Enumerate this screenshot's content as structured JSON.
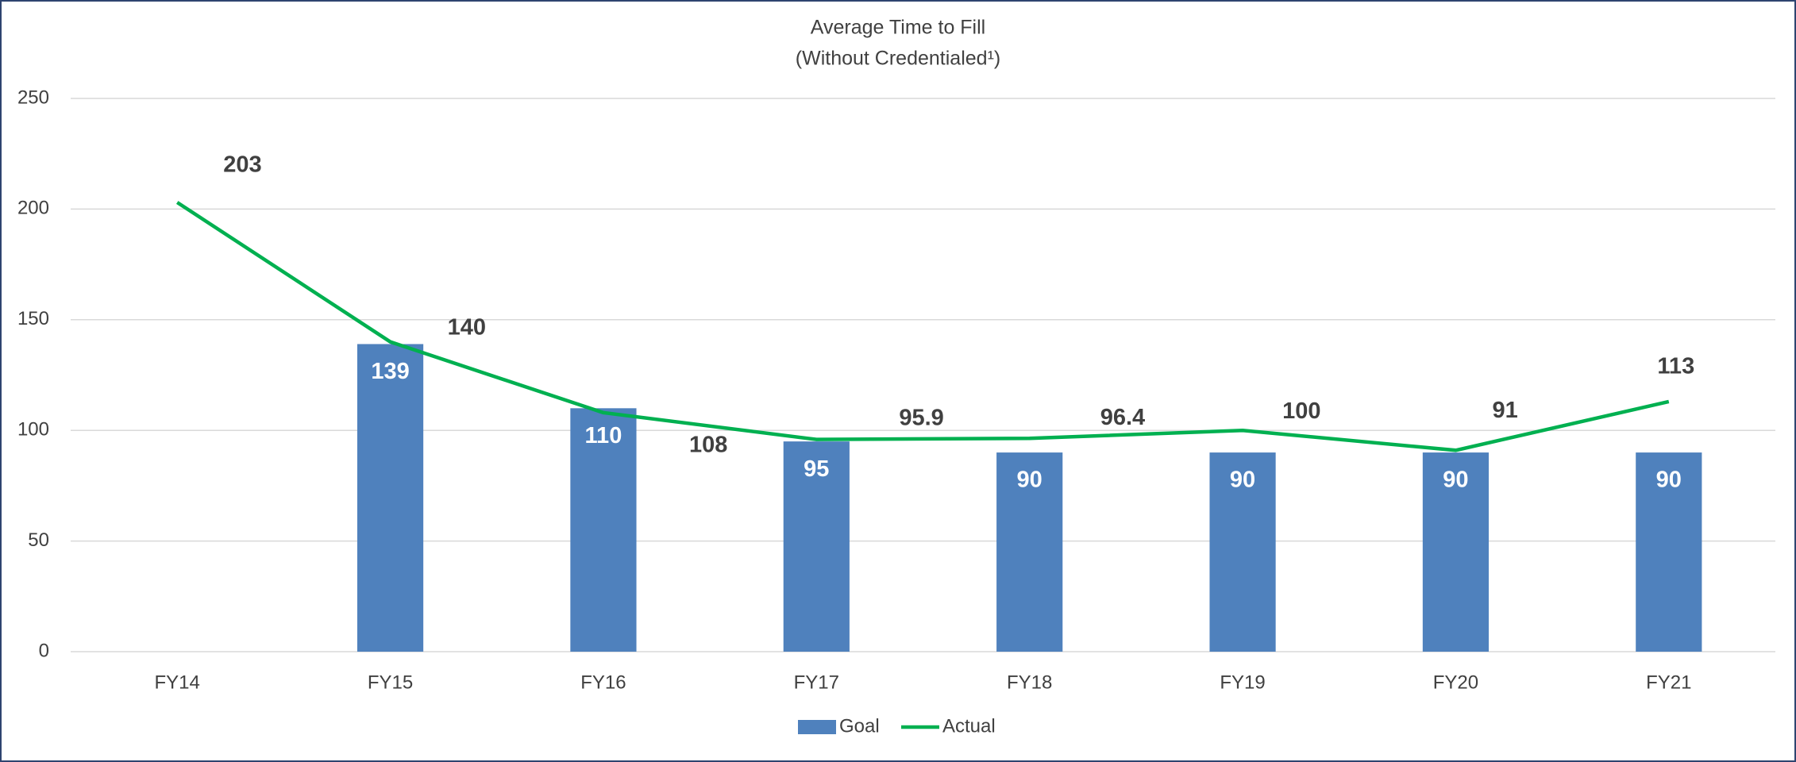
{
  "chart_data": {
    "type": "combo",
    "title": "Average Time to Fill",
    "subtitle": "(Without Credentialed¹)",
    "categories": [
      "FY14",
      "FY15",
      "FY16",
      "FY17",
      "FY18",
      "FY19",
      "FY20",
      "FY21"
    ],
    "series": [
      {
        "name": "Goal",
        "type": "bar",
        "color": "#4f81bd",
        "values": [
          null,
          139,
          110,
          95,
          90,
          90,
          90,
          90
        ]
      },
      {
        "name": "Actual",
        "type": "line",
        "color": "#00b050",
        "values": [
          203,
          140,
          108,
          95.9,
          96.4,
          100,
          91,
          113
        ]
      }
    ],
    "ylim": [
      0,
      250
    ],
    "yticks": [
      0,
      50,
      100,
      150,
      200,
      250
    ],
    "grid": true,
    "legend": "bottom"
  }
}
